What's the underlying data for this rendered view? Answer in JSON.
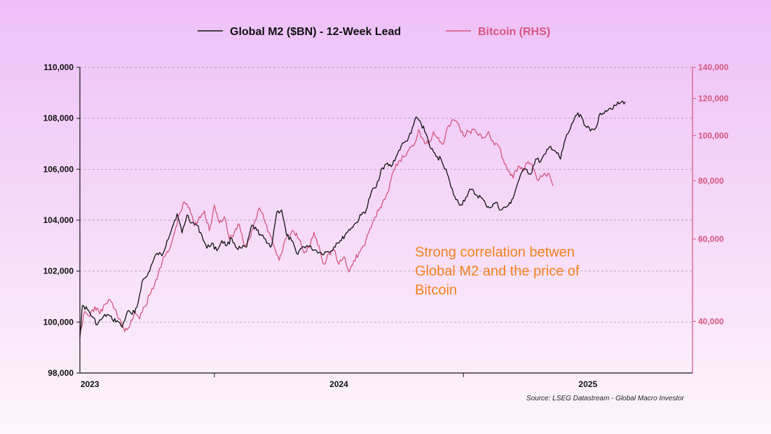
{
  "chart_data": {
    "type": "line",
    "title": "",
    "legend": [
      {
        "label": "Global M2 ($BN) - 12-Week Lead",
        "color": "#111111"
      },
      {
        "label": "Bitcoin (RHS)",
        "color": "#d6557f"
      }
    ],
    "x_ticks": [
      "2023",
      "2024",
      "2025"
    ],
    "xlim": [
      2022.96,
      2025.42
    ],
    "y_left": {
      "lim": [
        98000,
        110000
      ],
      "ticks": [
        "98,000",
        "100,000",
        "102,000",
        "104,000",
        "106,000",
        "108,000",
        "110,000"
      ],
      "tick_values": [
        98000,
        100000,
        102000,
        104000,
        106000,
        108000,
        110000
      ]
    },
    "y_right": {
      "scale": "log",
      "lim": [
        31000,
        140000
      ],
      "ticks": [
        "40,000",
        "60,000",
        "80,000",
        "100,000",
        "120,000",
        "140,000"
      ],
      "tick_values": [
        40000,
        60000,
        80000,
        100000,
        120000,
        140000
      ]
    },
    "series": [
      {
        "name": "Global M2 ($BN) - 12-Week Lead",
        "axis": "left",
        "color": "#111111",
        "x": [
          2022.96,
          2022.97,
          2022.99,
          2023.01,
          2023.03,
          2023.05,
          2023.07,
          2023.09,
          2023.11,
          2023.13,
          2023.15,
          2023.17,
          2023.19,
          2023.21,
          2023.23,
          2023.25,
          2023.27,
          2023.29,
          2023.31,
          2023.33,
          2023.35,
          2023.37,
          2023.39,
          2023.41,
          2023.43,
          2023.45,
          2023.47,
          2023.49,
          2023.51,
          2023.53,
          2023.55,
          2023.57,
          2023.59,
          2023.61,
          2023.63,
          2023.65,
          2023.67,
          2023.69,
          2023.71,
          2023.73,
          2023.75,
          2023.77,
          2023.79,
          2023.81,
          2023.83,
          2023.85,
          2023.87,
          2023.89,
          2023.91,
          2023.93,
          2023.95,
          2023.97,
          2023.99,
          2024.01,
          2024.03,
          2024.05,
          2024.07,
          2024.09,
          2024.11,
          2024.13,
          2024.15,
          2024.17,
          2024.19,
          2024.21,
          2024.23,
          2024.25,
          2024.27,
          2024.29,
          2024.31,
          2024.33,
          2024.35,
          2024.37,
          2024.39,
          2024.41,
          2024.43,
          2024.45,
          2024.47,
          2024.49,
          2024.51,
          2024.53,
          2024.55,
          2024.57,
          2024.59,
          2024.61,
          2024.63,
          2024.65,
          2024.67,
          2024.69,
          2024.71,
          2024.73,
          2024.75,
          2024.77,
          2024.79,
          2024.81,
          2024.83,
          2024.85,
          2024.87,
          2024.89,
          2024.91,
          2024.93,
          2024.95,
          2024.97,
          2024.99,
          2025.01,
          2025.03,
          2025.05,
          2025.07,
          2025.09,
          2025.11,
          2025.13,
          2025.15
        ],
        "values": [
          99400,
          100650,
          100500,
          100200,
          99900,
          100150,
          100300,
          100100,
          100050,
          99800,
          100400,
          100300,
          100600,
          101600,
          101800,
          102300,
          102700,
          102600,
          103200,
          103700,
          104250,
          103500,
          104200,
          103900,
          103800,
          103400,
          102900,
          103100,
          102800,
          103200,
          103000,
          103300,
          102900,
          102900,
          102950,
          103800,
          103600,
          103400,
          103100,
          103000,
          104300,
          104400,
          103400,
          103200,
          102700,
          102900,
          103000,
          102900,
          102800,
          102700,
          102750,
          102800,
          103100,
          103200,
          103500,
          103700,
          103900,
          104200,
          104400,
          105100,
          105300,
          106000,
          106200,
          106100,
          106500,
          106900,
          107100,
          107400,
          108050,
          107800,
          107400,
          106800,
          106500,
          106400,
          106000,
          105300,
          104800,
          104600,
          104900,
          105200,
          105000,
          104900,
          104600,
          104500,
          104700,
          104400,
          104500,
          104650,
          105200,
          105800,
          106000,
          105800,
          106400,
          106300,
          106600,
          106900,
          106700,
          106400,
          107200,
          107600,
          108100,
          108150,
          107700,
          107500,
          107600,
          108200,
          108300,
          108400,
          108500,
          108600,
          108650
        ]
      },
      {
        "name": "Bitcoin (RHS)",
        "axis": "right",
        "color": "#d6557f",
        "x": [
          2022.96,
          2022.98,
          2023.0,
          2023.02,
          2023.04,
          2023.06,
          2023.08,
          2023.1,
          2023.12,
          2023.14,
          2023.16,
          2023.18,
          2023.2,
          2023.22,
          2023.24,
          2023.26,
          2023.28,
          2023.3,
          2023.32,
          2023.34,
          2023.36,
          2023.38,
          2023.4,
          2023.42,
          2023.44,
          2023.46,
          2023.48,
          2023.5,
          2023.52,
          2023.54,
          2023.56,
          2023.58,
          2023.6,
          2023.62,
          2023.64,
          2023.66,
          2023.68,
          2023.7,
          2023.72,
          2023.74,
          2023.76,
          2023.78,
          2023.8,
          2023.82,
          2023.84,
          2023.86,
          2023.88,
          2023.9,
          2023.92,
          2023.94,
          2023.96,
          2023.98,
          2024.0,
          2024.02,
          2024.04,
          2024.06,
          2024.08,
          2024.1,
          2024.12,
          2024.14,
          2024.16,
          2024.18,
          2024.2,
          2024.22,
          2024.24,
          2024.26,
          2024.28,
          2024.3,
          2024.32,
          2024.34,
          2024.36,
          2024.38,
          2024.4,
          2024.42,
          2024.44,
          2024.46,
          2024.48,
          2024.5,
          2024.52,
          2024.54,
          2024.56,
          2024.58,
          2024.6,
          2024.62,
          2024.64,
          2024.66,
          2024.68,
          2024.7,
          2024.72,
          2024.74,
          2024.76,
          2024.78,
          2024.8,
          2024.82,
          2024.84,
          2024.86
        ],
        "values": [
          38000,
          42000,
          41000,
          43000,
          41500,
          43500,
          44500,
          42500,
          40500,
          38000,
          39000,
          42000,
          40500,
          43000,
          45500,
          48000,
          52000,
          55000,
          57000,
          62000,
          68000,
          72000,
          70000,
          64000,
          67000,
          69000,
          62500,
          71000,
          65000,
          67000,
          60000,
          62000,
          64500,
          58000,
          60000,
          65000,
          70000,
          66000,
          62000,
          58000,
          54000,
          59000,
          61000,
          62000,
          60000,
          56000,
          57500,
          62000,
          58000,
          53000,
          56000,
          57000,
          53000,
          55000,
          51000,
          54000,
          56000,
          58000,
          62000,
          66000,
          69000,
          73000,
          76000,
          84000,
          88000,
          90000,
          93000,
          95000,
          103000,
          98000,
          96000,
          102000,
          99000,
          96000,
          105000,
          108000,
          106000,
          100000,
          102000,
          103000,
          100000,
          99000,
          102000,
          97000,
          95000,
          89000,
          84000,
          81000,
          86000,
          84000,
          88000,
          85000,
          80000,
          82000,
          83000,
          78000
        ]
      }
    ],
    "annotation": [
      "Strong correlation betwen",
      "Global M2 and the price of",
      "Bitcoin"
    ],
    "source": "Source: LSEG Datastream - Global Macro Investor"
  }
}
